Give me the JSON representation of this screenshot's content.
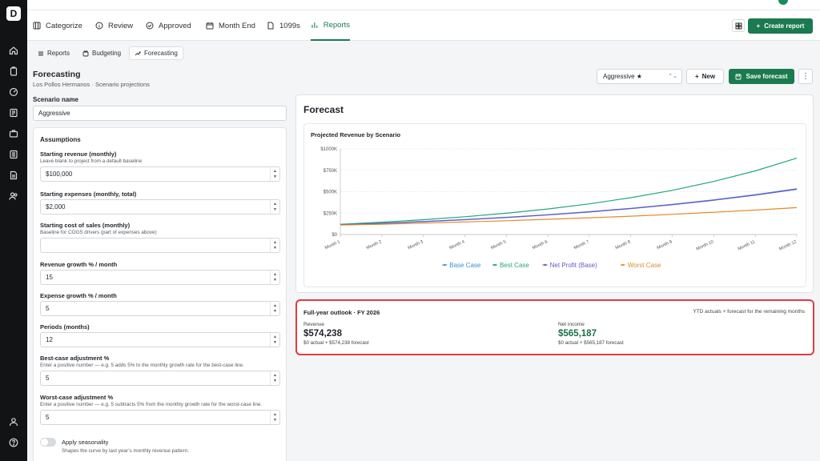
{
  "nav": {
    "tabs": [
      {
        "label": "Categorize",
        "icon": "categorize-icon"
      },
      {
        "label": "Review",
        "icon": "info-circle-icon"
      },
      {
        "label": "Approved",
        "icon": "check-circle-icon"
      },
      {
        "label": "Month End",
        "icon": "calendar-icon"
      },
      {
        "label": "1099s",
        "icon": "document-icon"
      },
      {
        "label": "Reports",
        "icon": "bar-chart-icon",
        "active": true
      }
    ],
    "create_report_label": "Create report"
  },
  "subtabs": [
    {
      "label": "Reports"
    },
    {
      "label": "Budgeting"
    },
    {
      "label": "Forecasting",
      "active": true
    }
  ],
  "page": {
    "title": "Forecasting",
    "subtitle": "Los Pollos Hermanos · Scenario projections"
  },
  "toolbar": {
    "scenario_selected": "Aggressive ★",
    "new_label": "New",
    "save_label": "Save forecast"
  },
  "scenario": {
    "label": "Scenario name",
    "value": "Aggressive"
  },
  "assumptions": {
    "title": "Assumptions",
    "starting_revenue": {
      "label": "Starting revenue (monthly)",
      "help": "Leave blank to project from a default baseline",
      "value": "$100,000"
    },
    "starting_expenses": {
      "label": "Starting expenses (monthly, total)",
      "value": "$2,000"
    },
    "starting_cos": {
      "label": "Starting cost of sales (monthly)",
      "help": "Baseline for COGS drivers (part of expenses above)",
      "value": ""
    },
    "revenue_growth": {
      "label": "Revenue growth % / month",
      "value": "15"
    },
    "expense_growth": {
      "label": "Expense growth % / month",
      "value": "5"
    },
    "periods": {
      "label": "Periods (months)",
      "value": "12"
    },
    "best_case": {
      "label": "Best-case adjustment %",
      "help": "Enter a positive number — e.g. 5 adds 5% to the monthly growth rate for the best-case line.",
      "value": "5"
    },
    "worst_case": {
      "label": "Worst-case adjustment %",
      "help": "Enter a positive number — e.g. 5 subtracts 5% from the monthly growth rate for the worst-case line.",
      "value": "5"
    },
    "seasonality": {
      "label": "Apply seasonality",
      "help": "Shapes the curve by last year’s monthly revenue pattern.",
      "enabled": false
    }
  },
  "forecast": {
    "title": "Forecast"
  },
  "chart_data": {
    "type": "line",
    "title": "Projected Revenue by Scenario",
    "x": [
      "Month 1",
      "Month 2",
      "Month 3",
      "Month 4",
      "Month 5",
      "Month 6",
      "Month 7",
      "Month 8",
      "Month 9",
      "Month 10",
      "Month 11",
      "Month 12"
    ],
    "ylim": [
      0,
      1000000
    ],
    "yticks": [
      0,
      250000,
      500000,
      750000,
      1000000
    ],
    "ytick_labels": [
      "$0",
      "$250K",
      "$500K",
      "$750K",
      "$1000K"
    ],
    "grid": true,
    "legend_position": "bottom",
    "series": [
      {
        "name": "Base Case",
        "color": "#3b8fd6",
        "values": [
          115000,
          132250,
          152088,
          174901,
          201136,
          231306,
          266002,
          305902,
          351788,
          404556,
          465239,
          535025
        ]
      },
      {
        "name": "Best Case",
        "color": "#22a87a",
        "values": [
          120000,
          144000,
          172800,
          207360,
          248832,
          298598,
          358318,
          429982,
          515978,
          619174,
          743008,
          891610
        ]
      },
      {
        "name": "Net Profit (Base)",
        "color": "#6a55c9",
        "values": [
          112900,
          130045,
          149773,
          172470,
          198565,
          228549,
          262985,
          302512,
          347857,
          399846,
          459416,
          527615
        ]
      },
      {
        "name": "Worst Case",
        "color": "#e2892a",
        "values": [
          110000,
          121000,
          133100,
          146410,
          161051,
          177156,
          194872,
          214359,
          235795,
          259374,
          285312,
          313843
        ]
      }
    ]
  },
  "outlook": {
    "title": "Full-year outlook · FY 2026",
    "note": "YTD actuals + forecast for the remaining months",
    "revenue": {
      "label": "Revenue",
      "value": "$574,238",
      "sub": "$0 actual + $574,238 forecast"
    },
    "net_income": {
      "label": "Net income",
      "value": "$565,187",
      "sub": "$0 actual + $565,187 forecast"
    },
    "value_color": "#1b6f45"
  }
}
